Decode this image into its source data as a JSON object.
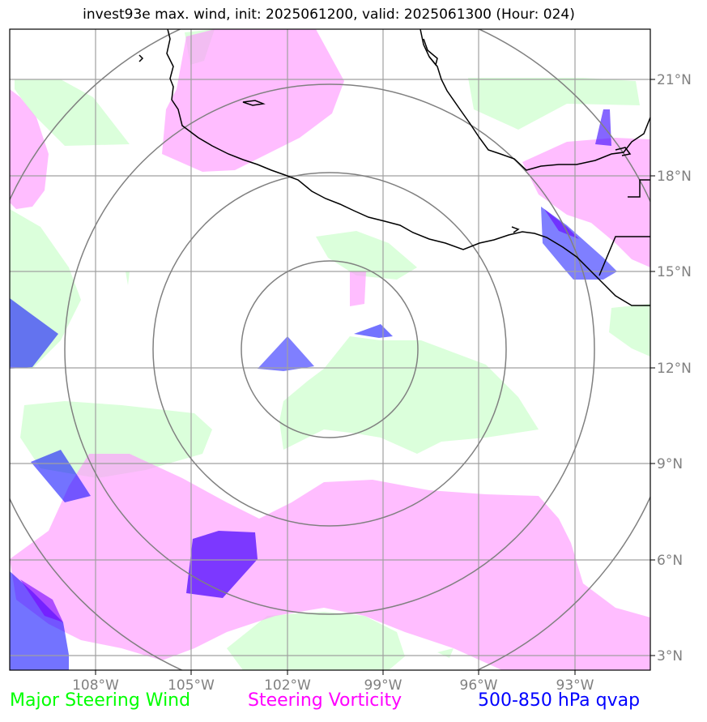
{
  "title": "invest93e max. wind, init: 2025061200, valid: 2025061300 (Hour: 024)",
  "axes": {
    "lon_ticks": [
      "108°W",
      "105°W",
      "102°W",
      "99°W",
      "96°W",
      "93°W"
    ],
    "lat_ticks": [
      "21°N",
      "18°N",
      "15°N",
      "12°N",
      "9°N",
      "6°N",
      "3°N"
    ],
    "lon_range": [
      -110.7,
      -90.7
    ],
    "lat_range": [
      2.6,
      21.8
    ]
  },
  "layers": {
    "steering_wind": {
      "label": "Major Steering Wind",
      "color": "#00ff00"
    },
    "steering_vorticity": {
      "label": "Steering Vorticity",
      "color": "#ff00ff"
    },
    "qvap": {
      "label": "500-850 hPa qvap",
      "color": "#0000ff"
    }
  },
  "range_rings": {
    "count": 4,
    "color": "#808080"
  },
  "coastline_color": "#000000"
}
